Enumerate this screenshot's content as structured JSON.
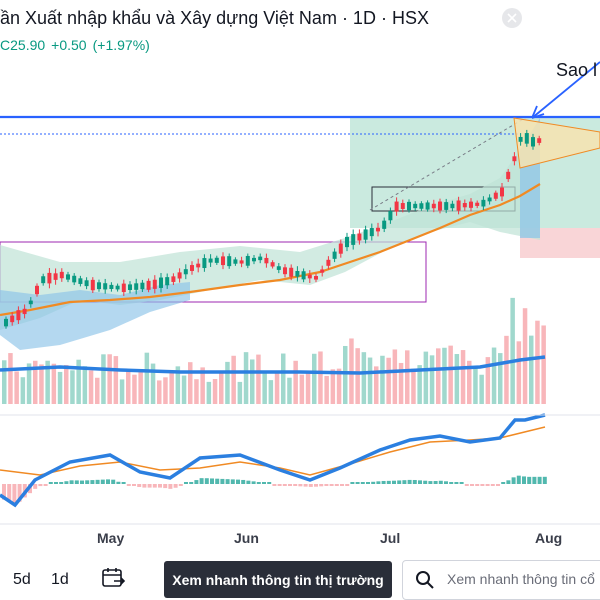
{
  "header": {
    "title": "ần Xuất nhập khẩu và Xây dựng Việt Nam · 1D · HSX",
    "price_prefix": "C",
    "price": "25.90",
    "change": "+0.50",
    "change_pct": "(+1.97%)"
  },
  "annotation": {
    "text": "Sao l"
  },
  "x_axis": {
    "labels": [
      "May",
      "Jun",
      "Jul",
      "Aug"
    ]
  },
  "toolbar": {
    "timeframes": [
      "5d",
      "1d"
    ],
    "quick_view_label": "Xem nhanh thông tin thị trường",
    "search_placeholder": "Xem nhanh thông tin cổ"
  },
  "icons": {
    "close": "close-icon",
    "calendar": "calendar-range-icon",
    "search": "search-icon"
  },
  "colors": {
    "up": "#089981",
    "down": "#f23645",
    "ma": "#f08a24",
    "bb_fill": "#bfe3d6",
    "bb_lower_fill": "#8cc3e8",
    "resistance": "#2962ff",
    "vol_line": "#2b7fe0",
    "macd_line": "#2b7fe0",
    "signal_line": "#f08a24",
    "rect_border": "#9c27b0",
    "text": "#131722"
  }
}
